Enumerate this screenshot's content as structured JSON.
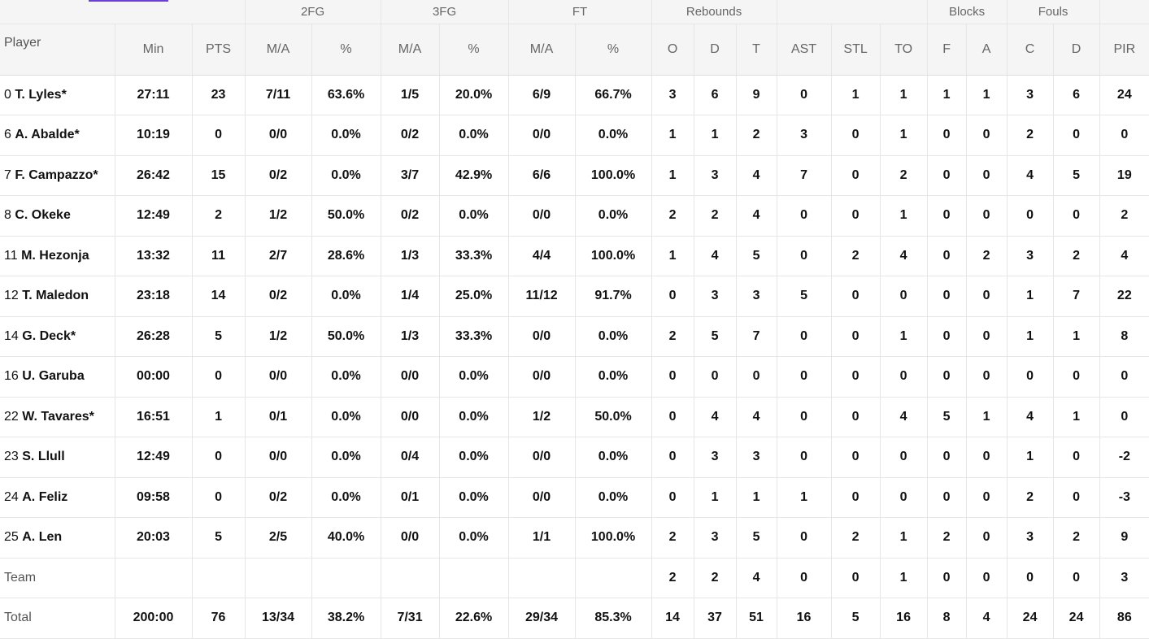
{
  "groups": {
    "fg2": "2FG",
    "fg3": "3FG",
    "ft": "FT",
    "rebounds": "Rebounds",
    "blocks": "Blocks",
    "fouls": "Fouls"
  },
  "columns": [
    "Player",
    "Min",
    "PTS",
    "M/A",
    "%",
    "M/A",
    "%",
    "M/A",
    "%",
    "O",
    "D",
    "T",
    "AST",
    "STL",
    "TO",
    "F",
    "A",
    "C",
    "D",
    "PIR"
  ],
  "players": [
    {
      "num": "0",
      "name": "T. Lyles*",
      "min": "27:11",
      "pts": "23",
      "fg2": "7/11",
      "fg2p": "63.6%",
      "fg3": "1/5",
      "fg3p": "20.0%",
      "ft": "6/9",
      "ftp": "66.7%",
      "o": "3",
      "d": "6",
      "t": "9",
      "ast": "0",
      "stl": "1",
      "to": "1",
      "bf": "1",
      "ba": "1",
      "fc": "3",
      "fd": "6",
      "pir": "24"
    },
    {
      "num": "6",
      "name": "A. Abalde*",
      "min": "10:19",
      "pts": "0",
      "fg2": "0/0",
      "fg2p": "0.0%",
      "fg3": "0/2",
      "fg3p": "0.0%",
      "ft": "0/0",
      "ftp": "0.0%",
      "o": "1",
      "d": "1",
      "t": "2",
      "ast": "3",
      "stl": "0",
      "to": "1",
      "bf": "0",
      "ba": "0",
      "fc": "2",
      "fd": "0",
      "pir": "0"
    },
    {
      "num": "7",
      "name": "F. Campazzo*",
      "min": "26:42",
      "pts": "15",
      "fg2": "0/2",
      "fg2p": "0.0%",
      "fg3": "3/7",
      "fg3p": "42.9%",
      "ft": "6/6",
      "ftp": "100.0%",
      "o": "1",
      "d": "3",
      "t": "4",
      "ast": "7",
      "stl": "0",
      "to": "2",
      "bf": "0",
      "ba": "0",
      "fc": "4",
      "fd": "5",
      "pir": "19"
    },
    {
      "num": "8",
      "name": "C. Okeke",
      "min": "12:49",
      "pts": "2",
      "fg2": "1/2",
      "fg2p": "50.0%",
      "fg3": "0/2",
      "fg3p": "0.0%",
      "ft": "0/0",
      "ftp": "0.0%",
      "o": "2",
      "d": "2",
      "t": "4",
      "ast": "0",
      "stl": "0",
      "to": "1",
      "bf": "0",
      "ba": "0",
      "fc": "0",
      "fd": "0",
      "pir": "2"
    },
    {
      "num": "11",
      "name": "M. Hezonja",
      "min": "13:32",
      "pts": "11",
      "fg2": "2/7",
      "fg2p": "28.6%",
      "fg3": "1/3",
      "fg3p": "33.3%",
      "ft": "4/4",
      "ftp": "100.0%",
      "o": "1",
      "d": "4",
      "t": "5",
      "ast": "0",
      "stl": "2",
      "to": "4",
      "bf": "0",
      "ba": "2",
      "fc": "3",
      "fd": "2",
      "pir": "4"
    },
    {
      "num": "12",
      "name": "T. Maledon",
      "min": "23:18",
      "pts": "14",
      "fg2": "0/2",
      "fg2p": "0.0%",
      "fg3": "1/4",
      "fg3p": "25.0%",
      "ft": "11/12",
      "ftp": "91.7%",
      "o": "0",
      "d": "3",
      "t": "3",
      "ast": "5",
      "stl": "0",
      "to": "0",
      "bf": "0",
      "ba": "0",
      "fc": "1",
      "fd": "7",
      "pir": "22"
    },
    {
      "num": "14",
      "name": "G. Deck*",
      "min": "26:28",
      "pts": "5",
      "fg2": "1/2",
      "fg2p": "50.0%",
      "fg3": "1/3",
      "fg3p": "33.3%",
      "ft": "0/0",
      "ftp": "0.0%",
      "o": "2",
      "d": "5",
      "t": "7",
      "ast": "0",
      "stl": "0",
      "to": "1",
      "bf": "0",
      "ba": "0",
      "fc": "1",
      "fd": "1",
      "pir": "8"
    },
    {
      "num": "16",
      "name": "U. Garuba",
      "min": "00:00",
      "pts": "0",
      "fg2": "0/0",
      "fg2p": "0.0%",
      "fg3": "0/0",
      "fg3p": "0.0%",
      "ft": "0/0",
      "ftp": "0.0%",
      "o": "0",
      "d": "0",
      "t": "0",
      "ast": "0",
      "stl": "0",
      "to": "0",
      "bf": "0",
      "ba": "0",
      "fc": "0",
      "fd": "0",
      "pir": "0"
    },
    {
      "num": "22",
      "name": "W. Tavares*",
      "min": "16:51",
      "pts": "1",
      "fg2": "0/1",
      "fg2p": "0.0%",
      "fg3": "0/0",
      "fg3p": "0.0%",
      "ft": "1/2",
      "ftp": "50.0%",
      "o": "0",
      "d": "4",
      "t": "4",
      "ast": "0",
      "stl": "0",
      "to": "4",
      "bf": "5",
      "ba": "1",
      "fc": "4",
      "fd": "1",
      "pir": "0"
    },
    {
      "num": "23",
      "name": "S. Llull",
      "min": "12:49",
      "pts": "0",
      "fg2": "0/0",
      "fg2p": "0.0%",
      "fg3": "0/4",
      "fg3p": "0.0%",
      "ft": "0/0",
      "ftp": "0.0%",
      "o": "0",
      "d": "3",
      "t": "3",
      "ast": "0",
      "stl": "0",
      "to": "0",
      "bf": "0",
      "ba": "0",
      "fc": "1",
      "fd": "0",
      "pir": "-2"
    },
    {
      "num": "24",
      "name": "A. Feliz",
      "min": "09:58",
      "pts": "0",
      "fg2": "0/2",
      "fg2p": "0.0%",
      "fg3": "0/1",
      "fg3p": "0.0%",
      "ft": "0/0",
      "ftp": "0.0%",
      "o": "0",
      "d": "1",
      "t": "1",
      "ast": "1",
      "stl": "0",
      "to": "0",
      "bf": "0",
      "ba": "0",
      "fc": "2",
      "fd": "0",
      "pir": "-3"
    },
    {
      "num": "25",
      "name": "A. Len",
      "min": "20:03",
      "pts": "5",
      "fg2": "2/5",
      "fg2p": "40.0%",
      "fg3": "0/0",
      "fg3p": "0.0%",
      "ft": "1/1",
      "ftp": "100.0%",
      "o": "2",
      "d": "3",
      "t": "5",
      "ast": "0",
      "stl": "2",
      "to": "1",
      "bf": "2",
      "ba": "0",
      "fc": "3",
      "fd": "2",
      "pir": "9"
    }
  ],
  "team": {
    "label": "Team",
    "min": "",
    "pts": "",
    "fg2": "",
    "fg2p": "",
    "fg3": "",
    "fg3p": "",
    "ft": "",
    "ftp": "",
    "o": "2",
    "d": "2",
    "t": "4",
    "ast": "0",
    "stl": "0",
    "to": "1",
    "bf": "0",
    "ba": "0",
    "fc": "0",
    "fd": "0",
    "pir": "3"
  },
  "total": {
    "label": "Total",
    "min": "200:00",
    "pts": "76",
    "fg2": "13/34",
    "fg2p": "38.2%",
    "fg3": "7/31",
    "fg3p": "22.6%",
    "ft": "29/34",
    "ftp": "85.3%",
    "o": "14",
    "d": "37",
    "t": "51",
    "ast": "16",
    "stl": "5",
    "to": "16",
    "bf": "8",
    "ba": "4",
    "fc": "24",
    "fd": "24",
    "pir": "86"
  },
  "colors": {
    "accent": "#6b3fd6",
    "header_bg": "#f5f5f5",
    "grid": "#e6e6e6"
  }
}
